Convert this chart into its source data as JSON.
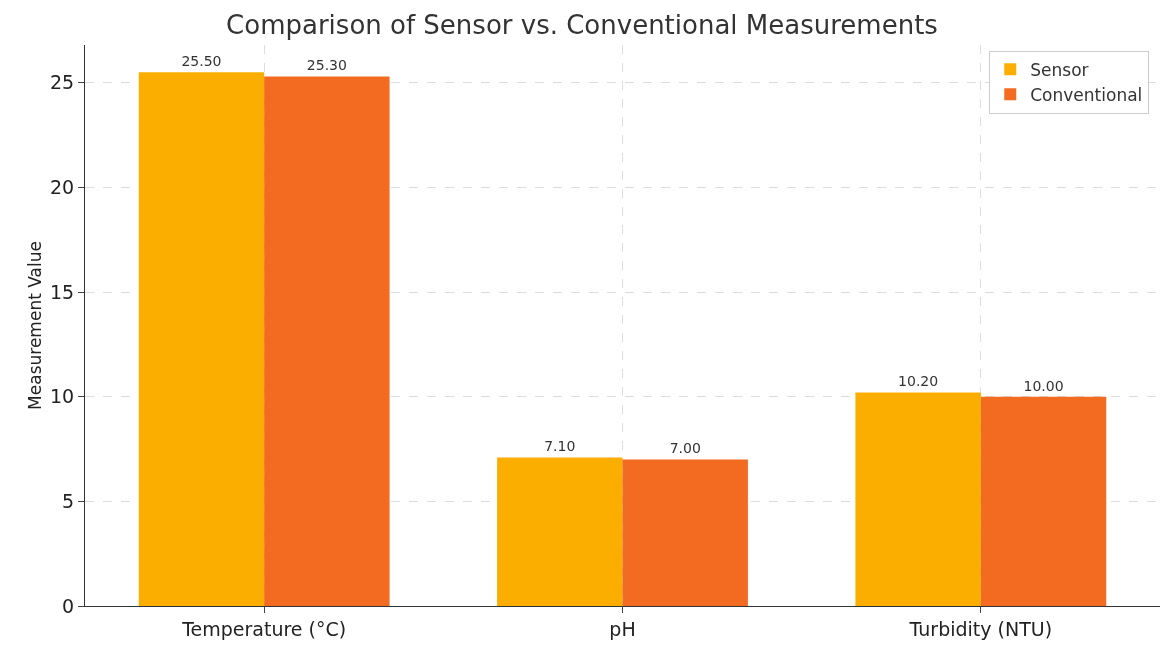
{
  "chart_data": {
    "type": "bar",
    "title": "Comparison of Sensor vs. Conventional Measurements",
    "ylabel": "Measurement Value",
    "categories": [
      "Temperature (°C)",
      "pH",
      "Turbidity (NTU)"
    ],
    "series": [
      {
        "name": "Sensor",
        "color": "#fbae00",
        "values": [
          25.5,
          7.1,
          10.2
        ],
        "value_labels": [
          "25.50",
          "7.10",
          "10.20"
        ]
      },
      {
        "name": "Conventional",
        "color": "#f26b21",
        "values": [
          25.3,
          7.0,
          10.0
        ],
        "value_labels": [
          "25.30",
          "7.00",
          "10.00"
        ]
      }
    ],
    "ylim": [
      0,
      26.8
    ],
    "yticks": [
      0,
      5,
      10,
      15,
      20,
      25
    ],
    "grid": true,
    "legend": "top right"
  }
}
